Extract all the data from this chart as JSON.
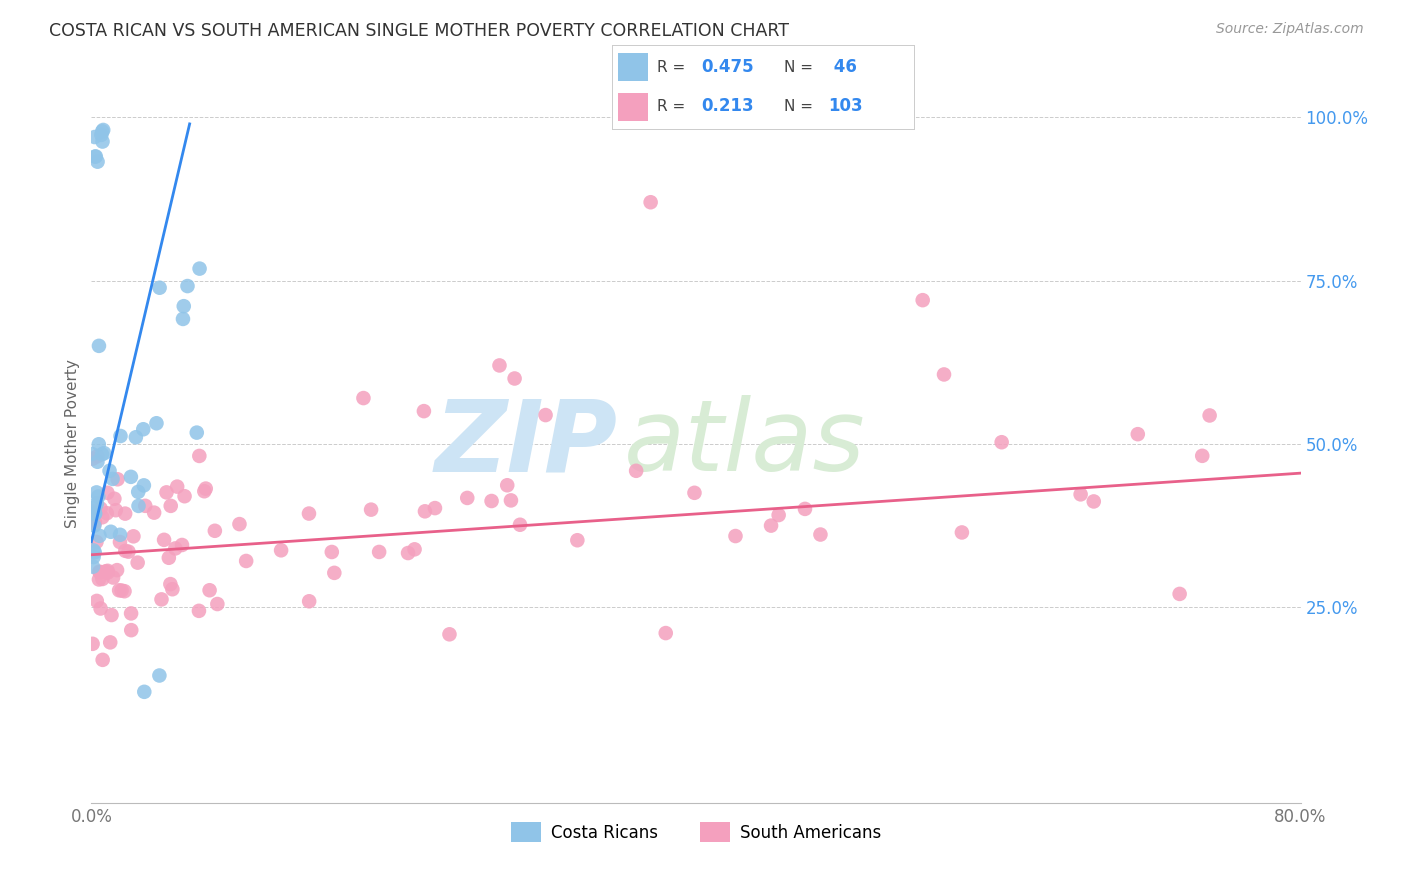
{
  "title": "COSTA RICAN VS SOUTH AMERICAN SINGLE MOTHER POVERTY CORRELATION CHART",
  "source": "Source: ZipAtlas.com",
  "ylabel": "Single Mother Poverty",
  "xmin": 0.0,
  "xmax": 0.8,
  "ymin": -0.05,
  "ymax": 1.05,
  "ytick_positions": [
    1.0,
    0.75,
    0.5,
    0.25
  ],
  "ytick_labels": [
    "100.0%",
    "75.0%",
    "50.0%",
    "25.0%"
  ],
  "color_blue": "#90c4e8",
  "color_pink": "#f4a0be",
  "line_blue": "#3388ee",
  "line_pink": "#e8608a",
  "watermark_zip": "ZIP",
  "watermark_atlas": "atlas",
  "watermark_color_zip": "#cde4f5",
  "watermark_color_atlas": "#d8ecd5",
  "background": "#ffffff",
  "grid_color": "#cccccc",
  "title_color": "#333333",
  "source_color": "#999999",
  "tick_color_right": "#4499ee",
  "tick_color_bottom": "#777777"
}
